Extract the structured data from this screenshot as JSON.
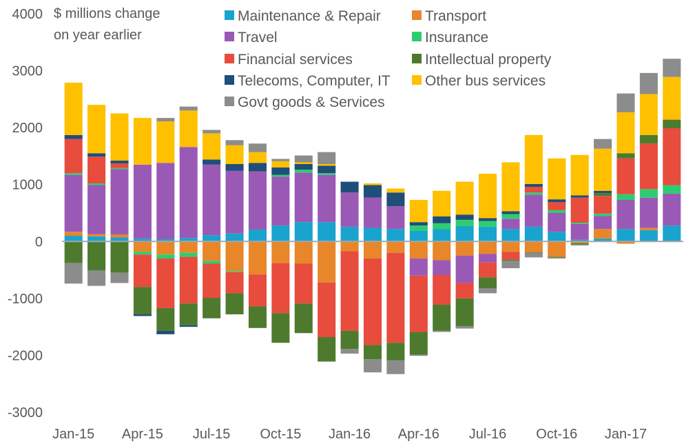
{
  "chart_data": {
    "type": "bar",
    "stacked": true,
    "ylabel_lines": [
      "$ millions change",
      "on year earlier"
    ],
    "ylim": [
      -3000,
      4000
    ],
    "yticks": [
      -3000,
      -2000,
      -1000,
      0,
      1000,
      2000,
      3000,
      4000
    ],
    "categories": [
      "Jan-15",
      "Feb-15",
      "Mar-15",
      "Apr-15",
      "May-15",
      "Jun-15",
      "Jul-15",
      "Aug-15",
      "Sep-15",
      "Oct-15",
      "Nov-15",
      "Dec-15",
      "Jan-16",
      "Feb-16",
      "Mar-16",
      "Apr-16",
      "May-16",
      "Jun-16",
      "Jul-16",
      "Aug-16",
      "Sep-16",
      "Oct-16",
      "Nov-16",
      "Dec-16",
      "Jan-17",
      "Feb-17",
      "Mar-17"
    ],
    "xtick_labels": [
      "Jan-15",
      "Apr-15",
      "Jul-15",
      "Oct-15",
      "Jan-16",
      "Apr-16",
      "Jul-16",
      "Oct-16",
      "Jan-17"
    ],
    "legend_position": "top",
    "grid": false,
    "series": [
      {
        "name": "Maintenance & Repair",
        "color": "#1aa3cc",
        "values": [
          100,
          90,
          70,
          50,
          40,
          60,
          110,
          140,
          210,
          280,
          340,
          340,
          260,
          240,
          220,
          190,
          220,
          270,
          260,
          220,
          260,
          170,
          30,
          50,
          220,
          200,
          280
        ]
      },
      {
        "name": "Transport",
        "color": "#e8862a",
        "values": [
          70,
          40,
          50,
          -180,
          -230,
          -200,
          -340,
          -520,
          -580,
          -380,
          -390,
          -720,
          -170,
          -300,
          -200,
          -300,
          -330,
          -250,
          -220,
          -180,
          -190,
          -270,
          -30,
          170,
          -40,
          40,
          -10
        ]
      },
      {
        "name": "Travel",
        "color": "#9b59b6",
        "values": [
          1000,
          860,
          1150,
          1300,
          1340,
          1600,
          1240,
          1100,
          1020,
          860,
          870,
          830,
          600,
          530,
          400,
          -300,
          -260,
          -480,
          -150,
          180,
          560,
          330,
          280,
          230,
          510,
          530,
          560
        ]
      },
      {
        "name": "Insurance",
        "color": "#2ecc71",
        "values": [
          30,
          30,
          20,
          -50,
          -70,
          -70,
          -50,
          -20,
          0,
          30,
          50,
          30,
          0,
          0,
          0,
          90,
          100,
          110,
          100,
          80,
          40,
          50,
          20,
          40,
          100,
          150,
          150
        ]
      },
      {
        "name": "Financial services",
        "color": "#e74c3c",
        "values": [
          600,
          470,
          80,
          -570,
          -870,
          -820,
          -600,
          -370,
          -560,
          -880,
          -700,
          -960,
          -1400,
          -1520,
          -1580,
          -990,
          -520,
          -270,
          -260,
          -140,
          100,
          140,
          440,
          310,
          630,
          800,
          1000
        ]
      },
      {
        "name": "Intellectual property",
        "color": "#4e7a2e",
        "values": [
          -380,
          -510,
          -550,
          -480,
          -400,
          -380,
          -360,
          -370,
          -380,
          -520,
          -520,
          -430,
          -320,
          -250,
          -310,
          -400,
          -460,
          -490,
          -190,
          -20,
          -10,
          -10,
          -20,
          50,
          90,
          150,
          150
        ]
      },
      {
        "name": "Telecoms, Computer, IT",
        "color": "#1f4e79",
        "values": [
          70,
          60,
          50,
          -30,
          -60,
          -30,
          90,
          120,
          150,
          130,
          100,
          130,
          190,
          220,
          240,
          60,
          120,
          90,
          50,
          50,
          50,
          50,
          40,
          40,
          0,
          0,
          0
        ]
      },
      {
        "name": "Other bus services",
        "color": "#ffc000",
        "values": [
          920,
          850,
          830,
          820,
          730,
          640,
          460,
          330,
          190,
          110,
          30,
          30,
          0,
          30,
          70,
          390,
          450,
          580,
          780,
          860,
          860,
          720,
          710,
          740,
          720,
          720,
          750
        ]
      },
      {
        "name": "Govt goods & Services",
        "color": "#8c8c8c",
        "values": [
          -360,
          -270,
          -180,
          0,
          60,
          70,
          60,
          90,
          150,
          40,
          120,
          210,
          -80,
          -230,
          -240,
          -20,
          -20,
          -40,
          -90,
          -130,
          -80,
          -20,
          -20,
          170,
          330,
          370,
          320
        ]
      }
    ]
  }
}
